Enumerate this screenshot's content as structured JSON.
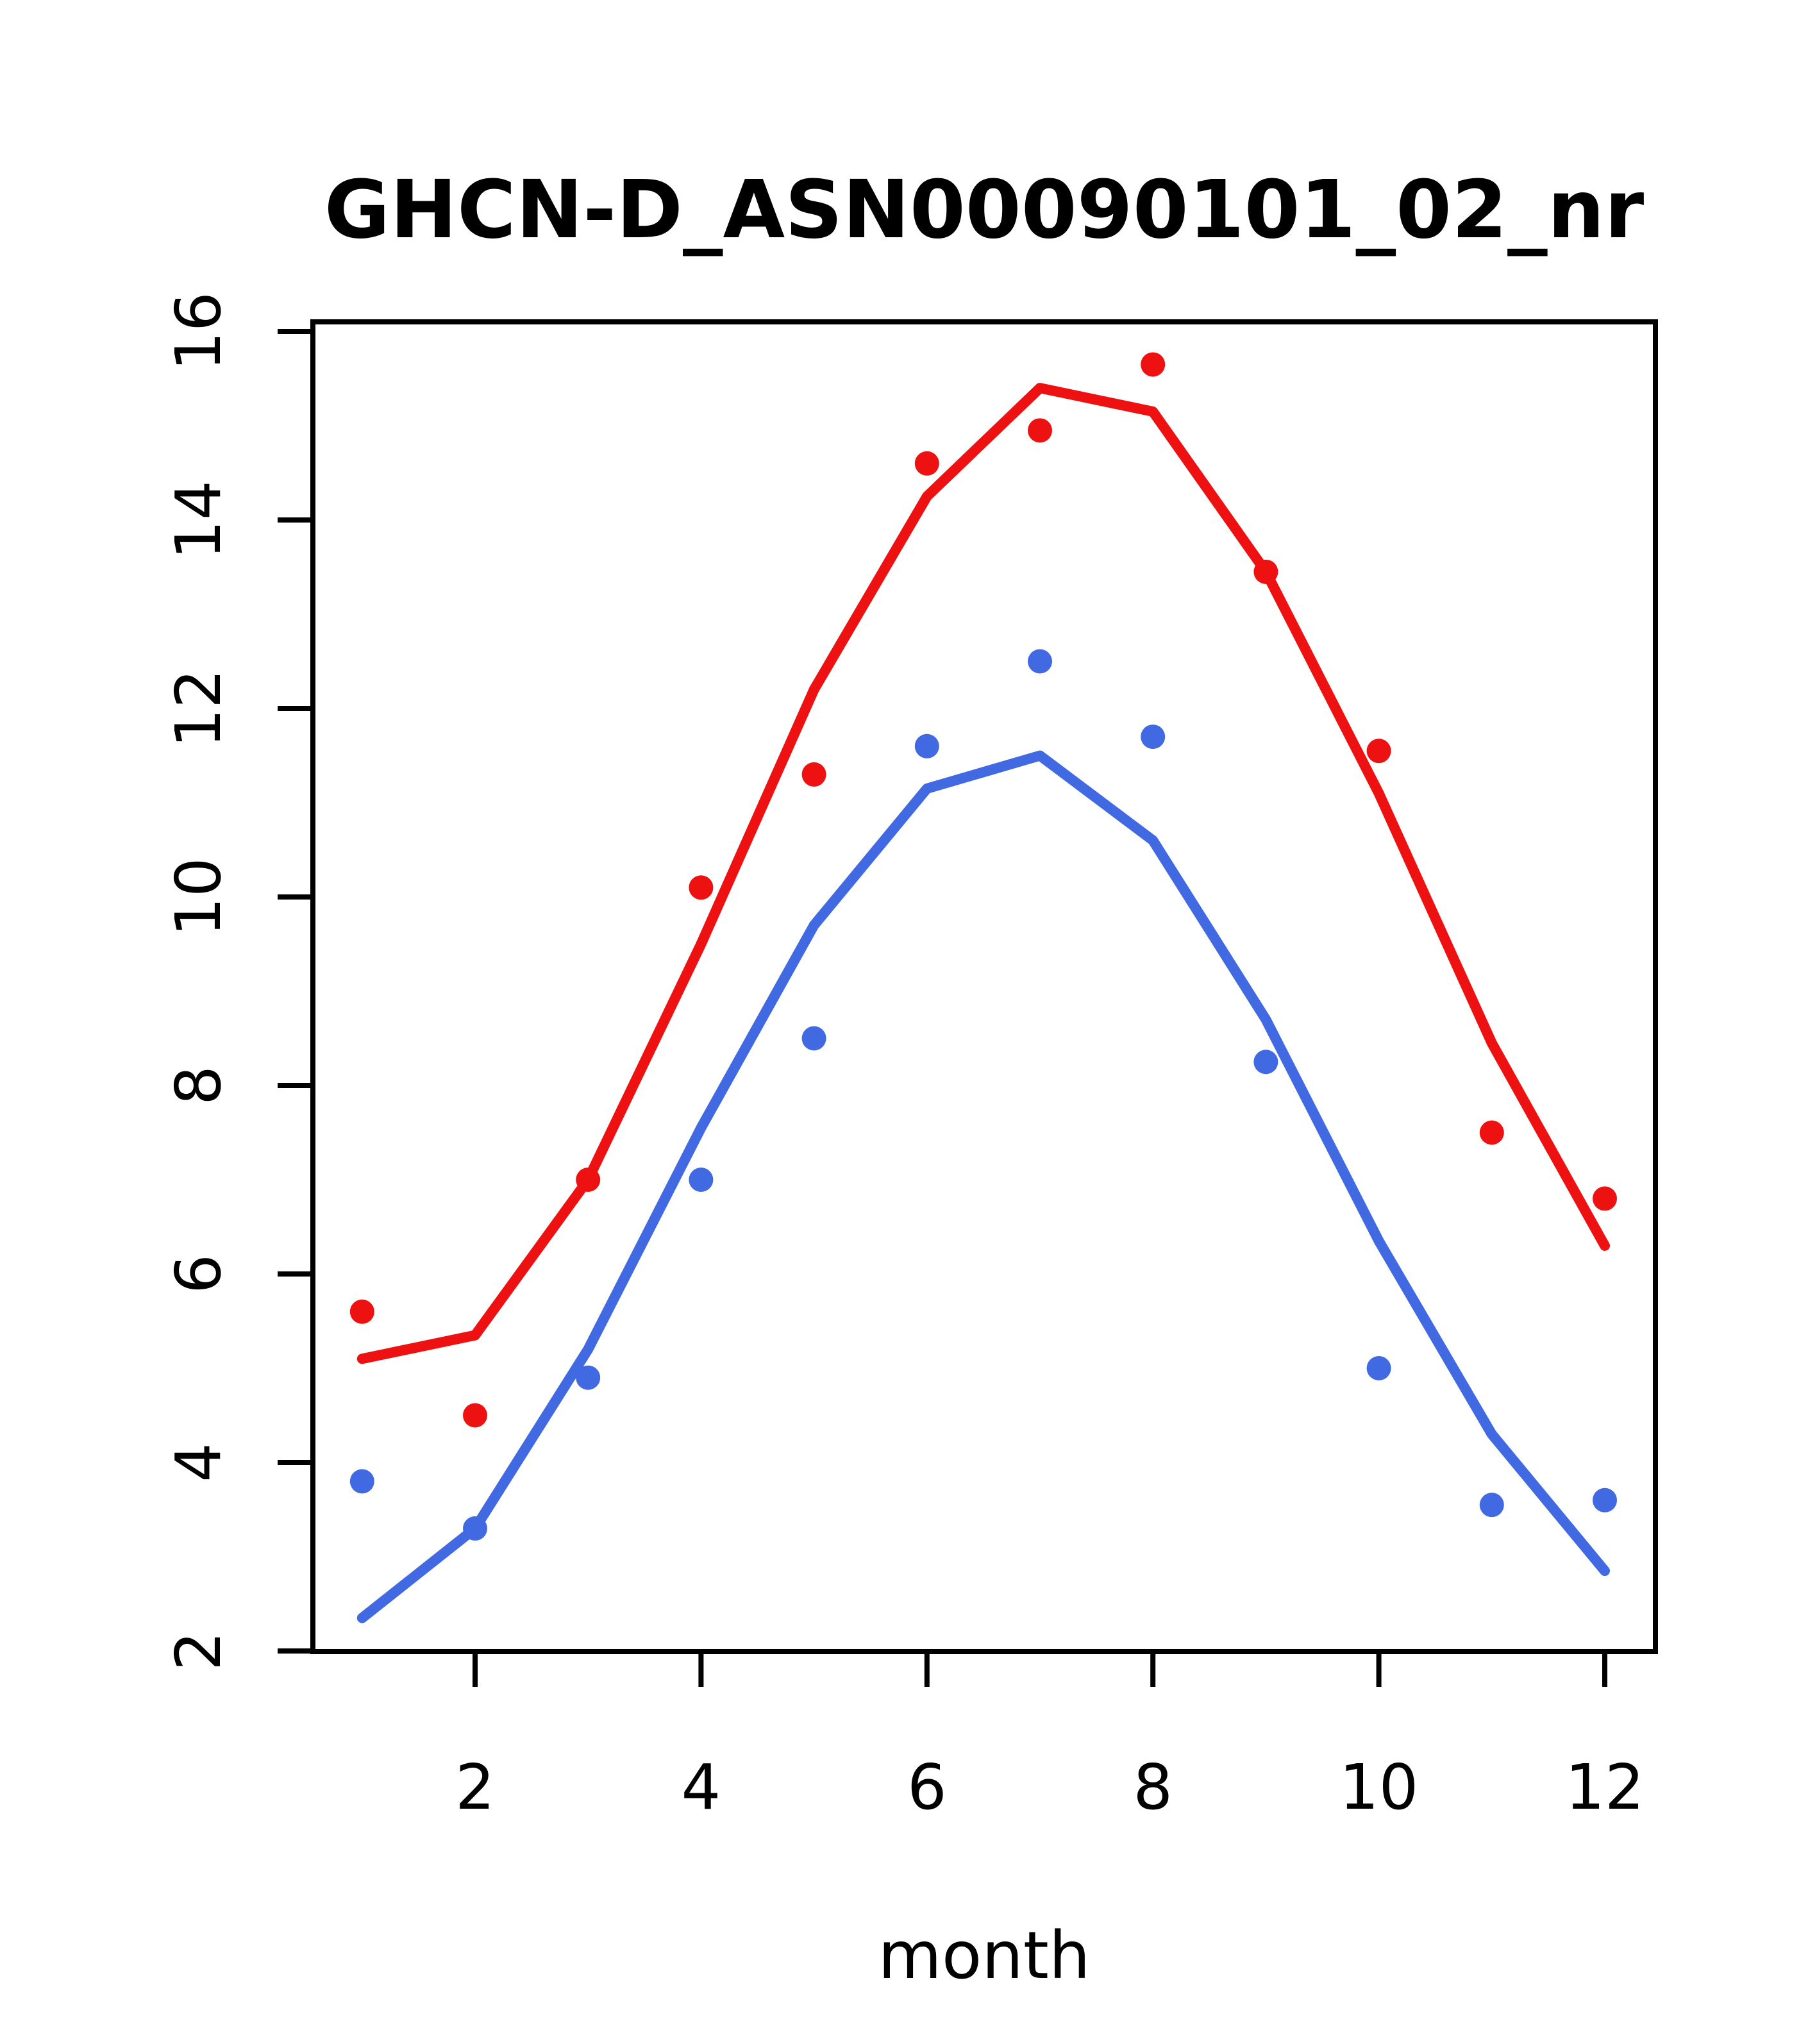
{
  "chart_data": {
    "type": "line",
    "title": "GHCN-D_ASN00090101_02_nr",
    "xlabel": "month",
    "ylabel": "",
    "x": [
      1,
      2,
      3,
      4,
      5,
      6,
      7,
      8,
      9,
      10,
      11,
      12
    ],
    "x_ticks": [
      2,
      4,
      6,
      8,
      10,
      12
    ],
    "y_ticks": [
      2,
      4,
      6,
      8,
      10,
      12,
      14,
      16
    ],
    "xlim": [
      0.55,
      12.45
    ],
    "ylim": [
      2.0,
      16.1
    ],
    "grid": "off",
    "legend": "none",
    "colors": {
      "red": "#ee1111",
      "blue": "#4169e1",
      "axis": "#000000",
      "background": "#ffffff"
    },
    "series": [
      {
        "name": "red points (monthly observations)",
        "style": "points",
        "color": "#ee1111",
        "values": [
          5.6,
          4.5,
          7.0,
          10.1,
          11.3,
          14.6,
          14.95,
          15.65,
          13.45,
          11.55,
          7.5,
          6.8
        ]
      },
      {
        "name": "red fitted line",
        "style": "line",
        "color": "#ee1111",
        "values": [
          5.1,
          5.35,
          7.0,
          9.5,
          12.2,
          14.25,
          15.4,
          15.15,
          13.45,
          11.1,
          8.45,
          6.3
        ]
      },
      {
        "name": "blue points (monthly observations)",
        "style": "points",
        "color": "#4169e1",
        "values": [
          3.8,
          3.3,
          4.9,
          7.0,
          8.5,
          11.6,
          12.5,
          11.7,
          8.25,
          5.0,
          3.55,
          3.6
        ]
      },
      {
        "name": "blue fitted line",
        "style": "line",
        "color": "#4169e1",
        "values": [
          2.35,
          3.3,
          5.2,
          7.55,
          9.7,
          11.15,
          11.5,
          10.6,
          8.7,
          6.35,
          4.3,
          2.85
        ]
      }
    ]
  }
}
